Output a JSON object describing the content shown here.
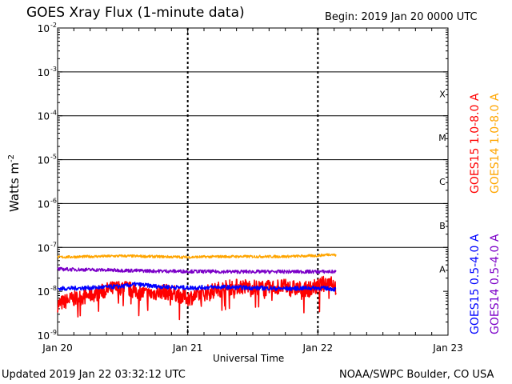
{
  "header": {
    "title": "GOES Xray Flux (1-minute data)",
    "begin": "Begin:  2019 Jan 20 0000 UTC"
  },
  "footer": {
    "updated": "Updated 2019 Jan 22 03:32:12 UTC",
    "credit": "NOAA/SWPC Boulder, CO USA"
  },
  "colors": {
    "goes15_long": "#ff0000",
    "goes14_long": "#ffa500",
    "goes15_short": "#0000ff",
    "goes14_short": "#7b00c8",
    "grid": "#000000"
  },
  "chart_data": {
    "type": "line",
    "title": "GOES Xray Flux (1-minute data)",
    "xlabel": "Universal Time",
    "ylabel": "Watts m",
    "ylabel_superscript": "-2",
    "yscale": "log",
    "ylim": [
      1e-09,
      0.01
    ],
    "xlim_days": [
      0,
      3
    ],
    "x_ticks": [
      "Jan 20",
      "Jan 21",
      "Jan 22",
      "Jan 23"
    ],
    "y_ticks": [
      {
        "base": "10",
        "exp": "-2",
        "value": 0.01
      },
      {
        "base": "10",
        "exp": "-3",
        "value": 0.001
      },
      {
        "base": "10",
        "exp": "-4",
        "value": 0.0001
      },
      {
        "base": "10",
        "exp": "-5",
        "value": 1e-05
      },
      {
        "base": "10",
        "exp": "-6",
        "value": 1e-06
      },
      {
        "base": "10",
        "exp": "-7",
        "value": 1e-07
      },
      {
        "base": "10",
        "exp": "-8",
        "value": 1e-08
      },
      {
        "base": "10",
        "exp": "-9",
        "value": 1e-09
      }
    ],
    "flare_classes": [
      {
        "label": "X",
        "value": 0.0001
      },
      {
        "label": "M",
        "value": 1e-05
      },
      {
        "label": "C",
        "value": 1e-06
      },
      {
        "label": "B",
        "value": 1e-07
      },
      {
        "label": "A",
        "value": 1e-08
      }
    ],
    "grid": "horizontal at each decade from 1e-7 to 1e-3",
    "series": [
      {
        "name": "GOES15 1.0-8.0 A",
        "color": "#ff0000",
        "x": [
          0.0,
          0.1,
          0.2,
          0.3,
          0.4,
          0.5,
          0.6,
          0.7,
          0.8,
          0.9,
          1.0,
          1.1,
          1.2,
          1.3,
          1.4,
          1.5,
          1.6,
          1.7,
          1.8,
          1.9,
          2.0,
          2.05,
          2.1,
          2.14
        ],
        "y": [
          5e-09,
          6.5e-09,
          7.5e-09,
          9e-09,
          1.1e-08,
          1.25e-08,
          1e-08,
          8.5e-09,
          1e-08,
          9e-09,
          7e-09,
          8.5e-09,
          1.05e-08,
          1.2e-08,
          1.3e-08,
          1.25e-08,
          1.15e-08,
          1.3e-08,
          1.2e-08,
          1.1e-08,
          1.3e-08,
          1.5e-08,
          1.8e-08,
          1.2e-08
        ]
      },
      {
        "name": "GOES14 1.0-8.0 A",
        "color": "#ffa500",
        "x": [
          0.0,
          0.25,
          0.5,
          0.75,
          1.0,
          1.25,
          1.5,
          1.75,
          2.0,
          2.1,
          2.14
        ],
        "y": [
          6e-08,
          6.2e-08,
          6.4e-08,
          6.2e-08,
          6e-08,
          6.2e-08,
          6.2e-08,
          6.2e-08,
          6.5e-08,
          7e-08,
          6.6e-08
        ]
      },
      {
        "name": "GOES15 0.5-4.0 A",
        "color": "#0000ff",
        "x": [
          0.0,
          0.25,
          0.5,
          0.6,
          0.75,
          1.0,
          1.25,
          1.5,
          1.75,
          2.0,
          2.1,
          2.14
        ],
        "y": [
          1.15e-08,
          1.2e-08,
          1.3e-08,
          1.45e-08,
          1.3e-08,
          1.2e-08,
          1.25e-08,
          1.2e-08,
          1.15e-08,
          1.2e-08,
          1.15e-08,
          1.1e-08
        ]
      },
      {
        "name": "GOES14 0.5-4.0 A",
        "color": "#7b00c8",
        "x": [
          0.0,
          0.25,
          0.5,
          0.75,
          1.0,
          1.25,
          1.5,
          1.75,
          2.0,
          2.14
        ],
        "y": [
          3.2e-08,
          3.1e-08,
          3e-08,
          2.9e-08,
          2.85e-08,
          2.8e-08,
          2.8e-08,
          2.8e-08,
          2.8e-08,
          2.8e-08
        ]
      }
    ]
  }
}
